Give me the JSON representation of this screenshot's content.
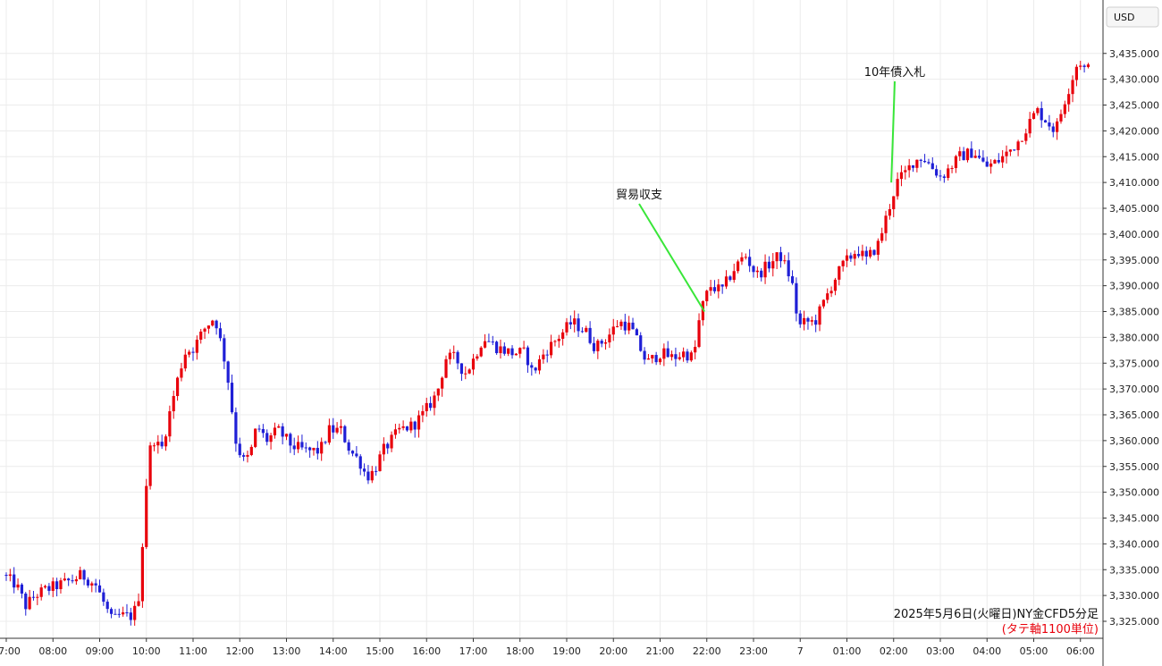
{
  "chart_data": {
    "type": "candlestick",
    "currency_label": "USD",
    "caption": "2025年5月6日(火曜日)NY金CFD5分足",
    "caption_note": "(タテ軸1100単位)",
    "y_axis": {
      "ylim": [
        3320,
        3438
      ],
      "ticks": [
        "3,325.000",
        "3,330.000",
        "3,335.000",
        "3,340.000",
        "3,345.000",
        "3,350.000",
        "3,355.000",
        "3,360.000",
        "3,365.000",
        "3,370.000",
        "3,375.000",
        "3,380.000",
        "3,385.000",
        "3,390.000",
        "3,395.000",
        "3,400.000",
        "3,405.000",
        "3,410.000",
        "3,415.000",
        "3,420.000",
        "3,425.000",
        "3,430.000",
        "3,435.000"
      ],
      "tick_values": [
        3325,
        3330,
        3335,
        3340,
        3345,
        3350,
        3355,
        3360,
        3365,
        3370,
        3375,
        3380,
        3385,
        3390,
        3395,
        3400,
        3405,
        3410,
        3415,
        3420,
        3425,
        3430,
        3435
      ]
    },
    "x_axis": {
      "labels": [
        "07:00",
        "08:00",
        "09:00",
        "10:00",
        "11:00",
        "12:00",
        "13:00",
        "14:00",
        "15:00",
        "16:00",
        "17:00",
        "18:00",
        "19:00",
        "20:00",
        "21:00",
        "22:00",
        "23:00",
        "7",
        "01:00",
        "02:00",
        "03:00",
        "04:00",
        "05:00",
        "06:00"
      ],
      "label_offsets": [
        0,
        1,
        2,
        3,
        4,
        5,
        6,
        7,
        8,
        9,
        10,
        11,
        12,
        13,
        14,
        15,
        16,
        17,
        18,
        19,
        20,
        21,
        22,
        23
      ],
      "hours_span": 23.15
    },
    "annotations": [
      {
        "text": "貿易収支",
        "target_hour": 14.95,
        "target_price": 3385
      },
      {
        "text": "10年債入札",
        "target_hour": 18.95,
        "target_price": 3410
      }
    ],
    "anchors": [
      [
        0,
        3334
      ],
      [
        0.3,
        3332
      ],
      [
        0.5,
        3328
      ],
      [
        0.7,
        3330
      ],
      [
        0.9,
        3331
      ],
      [
        1.2,
        3332
      ],
      [
        1.5,
        3333
      ],
      [
        1.7,
        3334
      ],
      [
        2.0,
        3332
      ],
      [
        2.2,
        3328
      ],
      [
        2.35,
        3325
      ],
      [
        2.5,
        3326
      ],
      [
        2.8,
        3326
      ],
      [
        2.95,
        3331
      ],
      [
        3.05,
        3349
      ],
      [
        3.2,
        3361
      ],
      [
        3.4,
        3358
      ],
      [
        3.55,
        3364
      ],
      [
        3.7,
        3370
      ],
      [
        3.9,
        3377
      ],
      [
        4.1,
        3378
      ],
      [
        4.35,
        3382
      ],
      [
        4.55,
        3384
      ],
      [
        4.8,
        3374
      ],
      [
        5.0,
        3360
      ],
      [
        5.15,
        3356
      ],
      [
        5.3,
        3357
      ],
      [
        5.45,
        3363
      ],
      [
        5.65,
        3360
      ],
      [
        5.9,
        3362
      ],
      [
        6.2,
        3359
      ],
      [
        6.5,
        3358
      ],
      [
        6.8,
        3358
      ],
      [
        7.0,
        3362
      ],
      [
        7.25,
        3362
      ],
      [
        7.45,
        3358
      ],
      [
        7.65,
        3356
      ],
      [
        7.8,
        3353
      ],
      [
        7.95,
        3354
      ],
      [
        8.15,
        3358
      ],
      [
        8.5,
        3362
      ],
      [
        8.8,
        3363
      ],
      [
        9.0,
        3365
      ],
      [
        9.3,
        3369
      ],
      [
        9.5,
        3376
      ],
      [
        9.7,
        3376
      ],
      [
        9.9,
        3373
      ],
      [
        10.05,
        3375
      ],
      [
        10.3,
        3380
      ],
      [
        10.6,
        3378
      ],
      [
        10.9,
        3377
      ],
      [
        11.2,
        3377
      ],
      [
        11.35,
        3373
      ],
      [
        11.6,
        3377
      ],
      [
        11.9,
        3380
      ],
      [
        12.2,
        3383
      ],
      [
        12.5,
        3381
      ],
      [
        12.7,
        3378
      ],
      [
        12.95,
        3380
      ],
      [
        13.2,
        3383
      ],
      [
        13.45,
        3382
      ],
      [
        13.6,
        3379
      ],
      [
        13.8,
        3375
      ],
      [
        14.1,
        3377
      ],
      [
        14.35,
        3376
      ],
      [
        14.6,
        3377
      ],
      [
        14.8,
        3376
      ],
      [
        14.95,
        3385
      ],
      [
        15.15,
        3390
      ],
      [
        15.4,
        3389
      ],
      [
        15.65,
        3393
      ],
      [
        15.9,
        3396
      ],
      [
        16.15,
        3392
      ],
      [
        16.4,
        3394
      ],
      [
        16.65,
        3396
      ],
      [
        16.9,
        3391
      ],
      [
        17.05,
        3382
      ],
      [
        17.2,
        3383
      ],
      [
        17.4,
        3383
      ],
      [
        17.6,
        3387
      ],
      [
        17.8,
        3391
      ],
      [
        18.0,
        3394
      ],
      [
        18.3,
        3397
      ],
      [
        18.5,
        3395
      ],
      [
        18.75,
        3398
      ],
      [
        18.95,
        3404
      ],
      [
        19.15,
        3410
      ],
      [
        19.35,
        3412
      ],
      [
        19.5,
        3414
      ],
      [
        19.7,
        3415
      ],
      [
        19.9,
        3413
      ],
      [
        20.1,
        3411
      ],
      [
        20.3,
        3413
      ],
      [
        20.5,
        3415
      ],
      [
        20.8,
        3416
      ],
      [
        21.05,
        3413
      ],
      [
        21.3,
        3414
      ],
      [
        21.55,
        3416
      ],
      [
        21.75,
        3418
      ],
      [
        21.95,
        3421
      ],
      [
        22.15,
        3424
      ],
      [
        22.35,
        3422
      ],
      [
        22.55,
        3420
      ],
      [
        22.75,
        3426
      ],
      [
        22.9,
        3430
      ],
      [
        23.05,
        3434
      ],
      [
        23.15,
        3432
      ]
    ]
  }
}
